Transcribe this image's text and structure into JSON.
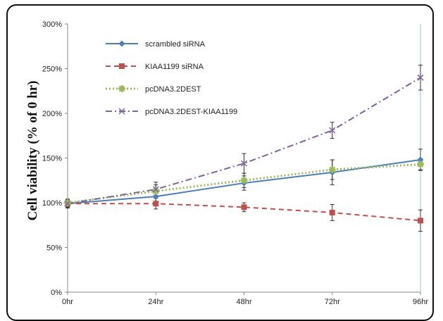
{
  "chart_data": {
    "type": "line",
    "title": "",
    "xlabel": "",
    "ylabel": "Cell viability (% of 0 hr)",
    "categories": [
      "0hr",
      "24hr",
      "48hr",
      "72hr",
      "96hr"
    ],
    "ylim": [
      0,
      300
    ],
    "y_ticks": [
      "0%",
      "50%",
      "100%",
      "150%",
      "200%",
      "250%",
      "300%"
    ],
    "grid": false,
    "legend_placement": "top-left",
    "series": [
      {
        "name": "scrambled siRNA",
        "values": [
          99,
          107,
          122,
          134,
          148
        ],
        "errors": [
          5,
          6,
          8,
          14,
          12
        ],
        "color": "#4a7ebb",
        "dash": "solid",
        "marker": "diamond"
      },
      {
        "name": "KIAA1199 siRNA",
        "values": [
          99,
          99,
          95,
          89,
          80
        ],
        "errors": [
          4,
          6,
          5,
          9,
          12
        ],
        "color": "#c0504d",
        "dash": "dash",
        "marker": "square"
      },
      {
        "name": "pcDNA3.2DEST",
        "values": [
          100,
          113,
          125,
          137,
          143
        ],
        "errors": [
          4,
          7,
          8,
          11,
          6
        ],
        "color": "#9bbb59",
        "dash": "dot",
        "marker": "asterisk"
      },
      {
        "name": "pcDNA3.2DEST-KIAA1199",
        "values": [
          99,
          115,
          144,
          181,
          240
        ],
        "errors": [
          4,
          8,
          11,
          9,
          14
        ],
        "color": "#8064a2",
        "dash": "dashdot",
        "marker": "x"
      }
    ]
  }
}
